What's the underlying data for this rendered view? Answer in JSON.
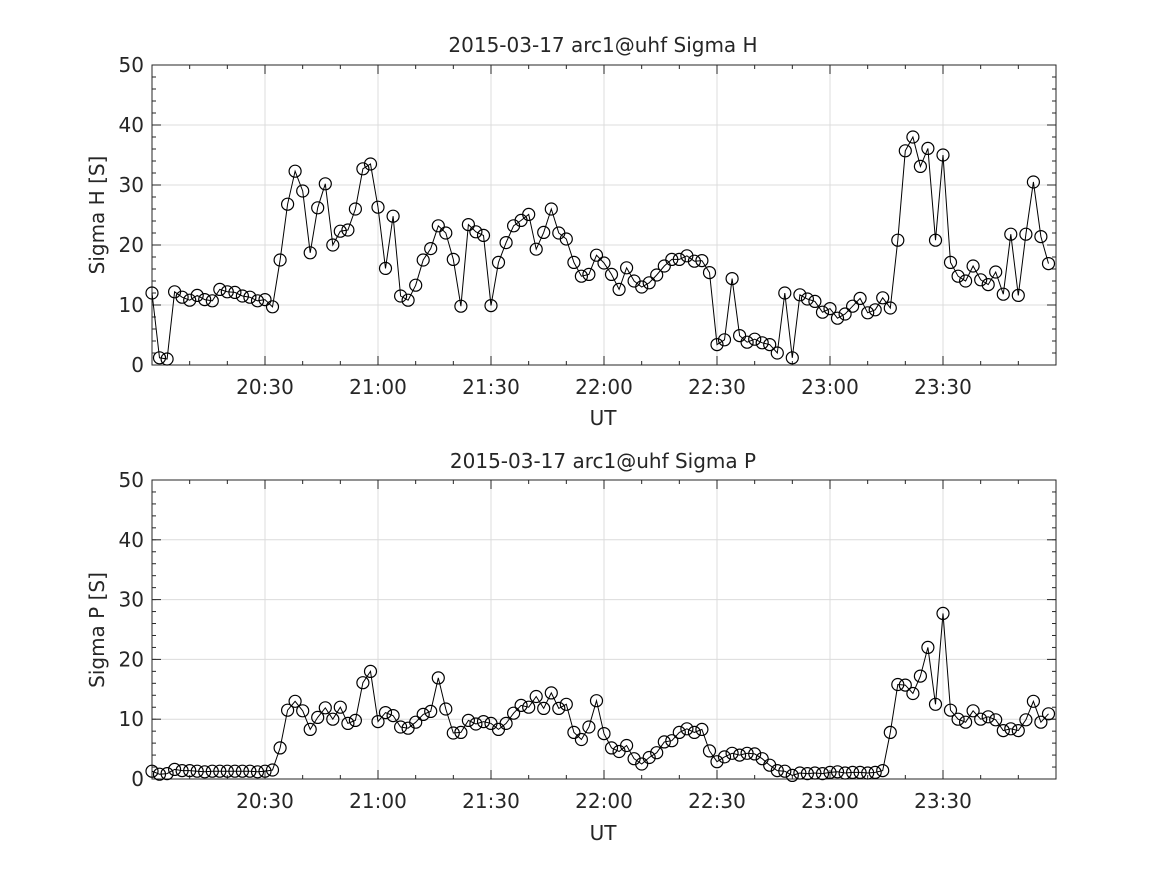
{
  "chart_data": [
    {
      "type": "line",
      "title": "2015-03-17  arc1@uhf Sigma H",
      "xlabel": "UT",
      "ylabel": "Sigma H [S]",
      "ylim": [
        0,
        50
      ],
      "yticks": [
        "0",
        "10",
        "20",
        "30",
        "40",
        "50"
      ],
      "xlim": [
        "20:00",
        "24:00"
      ],
      "xticks": [
        "20:30",
        "21:00",
        "21:30",
        "22:00",
        "22:30",
        "23:00",
        "23:30"
      ],
      "grid": true,
      "series": [
        {
          "times": [
            "20:00",
            "20:02",
            "20:04",
            "20:06",
            "20:08",
            "20:10",
            "20:12",
            "20:14",
            "20:16",
            "20:18",
            "20:20",
            "20:22",
            "20:24",
            "20:26",
            "20:28",
            "20:30",
            "20:32",
            "20:34",
            "20:36",
            "20:38",
            "20:40",
            "20:42",
            "20:44",
            "20:46",
            "20:48",
            "20:50",
            "20:52",
            "20:54",
            "20:56",
            "20:58",
            "21:00",
            "21:02",
            "21:04",
            "21:06",
            "21:08",
            "21:10",
            "21:12",
            "21:14",
            "21:16",
            "21:18",
            "21:20",
            "21:22",
            "21:24",
            "21:26",
            "21:28",
            "21:30",
            "21:32",
            "21:34",
            "21:36",
            "21:38",
            "21:40",
            "21:42",
            "21:44",
            "21:46",
            "21:48",
            "21:50",
            "21:52",
            "21:54",
            "21:56",
            "21:58",
            "22:00",
            "22:02",
            "22:04",
            "22:06",
            "22:08",
            "22:10",
            "22:12",
            "22:14",
            "22:16",
            "22:18",
            "22:20",
            "22:22",
            "22:24",
            "22:26",
            "22:28",
            "22:30",
            "22:32",
            "22:34",
            "22:36",
            "22:38",
            "22:40",
            "22:42",
            "22:44",
            "22:46",
            "22:48",
            "22:50",
            "22:52",
            "22:54",
            "22:56",
            "22:58",
            "23:00",
            "23:02",
            "23:04",
            "23:06",
            "23:08",
            "23:10",
            "23:12",
            "23:14",
            "23:16",
            "23:18",
            "23:20",
            "23:22",
            "23:24",
            "23:26",
            "23:28",
            "23:30",
            "23:32",
            "23:34",
            "23:36",
            "23:38",
            "23:40",
            "23:42",
            "23:44",
            "23:46",
            "23:48",
            "23:50",
            "23:52",
            "23:54",
            "23:56",
            "23:58"
          ],
          "values": [
            12,
            1.2,
            1,
            12.2,
            11.3,
            10.8,
            11.6,
            10.9,
            10.7,
            12.6,
            12.2,
            12.1,
            11.5,
            11.3,
            10.7,
            10.9,
            9.7,
            17.5,
            26.8,
            32.3,
            29,
            18.7,
            26.2,
            30.2,
            20,
            22.3,
            22.5,
            26,
            32.7,
            33.5,
            26.3,
            16.1,
            24.8,
            11.5,
            10.8,
            13.3,
            17.5,
            19.4,
            23.2,
            22,
            17.6,
            9.8,
            23.4,
            22.2,
            21.6,
            9.9,
            17.1,
            20.4,
            23.2,
            24.1,
            25.1,
            19.3,
            22.1,
            26,
            22,
            21,
            17.1,
            14.8,
            15.1,
            18.3,
            17,
            15.1,
            12.6,
            16.2,
            14,
            13,
            13.7,
            15,
            16.5,
            17.6,
            17.6,
            18.2,
            17.3,
            17.4,
            15.4,
            3.4,
            4.2,
            14.4,
            4.9,
            3.8,
            4.3,
            3.7,
            3.4,
            2,
            12,
            1.2,
            11.7,
            11,
            10.6,
            8.8,
            9.4,
            7.8,
            8.5,
            9.8,
            11.1,
            8.7,
            9.2,
            11.2,
            9.5,
            20.8,
            35.7,
            38,
            33.1,
            36.1,
            20.8,
            35,
            17.1,
            14.8,
            14,
            16.5,
            14.2,
            13.4,
            15.5,
            11.8,
            21.8,
            11.6,
            21.8,
            30.5,
            21.4,
            16.9
          ]
        }
      ]
    },
    {
      "type": "line",
      "title": "2015-03-17  arc1@uhf Sigma P",
      "xlabel": "UT",
      "ylabel": "Sigma P [S]",
      "ylim": [
        0,
        50
      ],
      "yticks": [
        "0",
        "10",
        "20",
        "30",
        "40",
        "50"
      ],
      "xlim": [
        "20:00",
        "24:00"
      ],
      "xticks": [
        "20:30",
        "21:00",
        "21:30",
        "22:00",
        "22:30",
        "23:00",
        "23:30"
      ],
      "grid": true,
      "series": [
        {
          "times": [
            "20:00",
            "20:02",
            "20:04",
            "20:06",
            "20:08",
            "20:10",
            "20:12",
            "20:14",
            "20:16",
            "20:18",
            "20:20",
            "20:22",
            "20:24",
            "20:26",
            "20:28",
            "20:30",
            "20:32",
            "20:34",
            "20:36",
            "20:38",
            "20:40",
            "20:42",
            "20:44",
            "20:46",
            "20:48",
            "20:50",
            "20:52",
            "20:54",
            "20:56",
            "20:58",
            "21:00",
            "21:02",
            "21:04",
            "21:06",
            "21:08",
            "21:10",
            "21:12",
            "21:14",
            "21:16",
            "21:18",
            "21:20",
            "21:22",
            "21:24",
            "21:26",
            "21:28",
            "21:30",
            "21:32",
            "21:34",
            "21:36",
            "21:38",
            "21:40",
            "21:42",
            "21:44",
            "21:46",
            "21:48",
            "21:50",
            "21:52",
            "21:54",
            "21:56",
            "21:58",
            "22:00",
            "22:02",
            "22:04",
            "22:06",
            "22:08",
            "22:10",
            "22:12",
            "22:14",
            "22:16",
            "22:18",
            "22:20",
            "22:22",
            "22:24",
            "22:26",
            "22:28",
            "22:30",
            "22:32",
            "22:34",
            "22:36",
            "22:38",
            "22:40",
            "22:42",
            "22:44",
            "22:46",
            "22:48",
            "22:50",
            "22:52",
            "22:54",
            "22:56",
            "22:58",
            "23:00",
            "23:02",
            "23:04",
            "23:06",
            "23:08",
            "23:10",
            "23:12",
            "23:14",
            "23:16",
            "23:18",
            "23:20",
            "23:22",
            "23:24",
            "23:26",
            "23:28",
            "23:30",
            "23:32",
            "23:34",
            "23:36",
            "23:38",
            "23:40",
            "23:42",
            "23:44",
            "23:46",
            "23:48",
            "23:50",
            "23:52",
            "23:54",
            "23:56",
            "23:58"
          ],
          "values": [
            1.3,
            0.8,
            0.9,
            1.6,
            1.4,
            1.4,
            1.3,
            1.2,
            1.3,
            1.3,
            1.3,
            1.3,
            1.3,
            1.3,
            1.2,
            1.3,
            1.5,
            5.2,
            11.5,
            13,
            11.4,
            8.3,
            10.3,
            11.9,
            10,
            12,
            9.3,
            9.8,
            16.1,
            18,
            9.6,
            11.1,
            10.6,
            8.7,
            8.5,
            9.5,
            10.8,
            11.3,
            16.9,
            11.7,
            7.7,
            7.8,
            9.8,
            9.2,
            9.6,
            9.3,
            8.3,
            9.3,
            11,
            12.3,
            12,
            13.8,
            11.8,
            14.4,
            11.8,
            12.5,
            7.8,
            6.6,
            8.7,
            13.1,
            7.6,
            5.2,
            4.6,
            5.6,
            3.4,
            2.5,
            3.6,
            4.4,
            6.2,
            6.4,
            7.8,
            8.4,
            7.8,
            8.3,
            4.7,
            2.9,
            3.7,
            4.3,
            4,
            4.3,
            4.2,
            3.4,
            2.3,
            1.4,
            1.3,
            0.6,
            1,
            0.9,
            1,
            0.9,
            1.1,
            1.2,
            1,
            1.1,
            1.1,
            1,
            1.1,
            1.4,
            7.8,
            15.8,
            15.7,
            14.3,
            17.2,
            22,
            12.5,
            27.7,
            11.5,
            10,
            9.5,
            11.4,
            10,
            10.4,
            9.9,
            8.1,
            8.4,
            8.1,
            9.9,
            13,
            9.5,
            10.9
          ]
        }
      ]
    }
  ]
}
